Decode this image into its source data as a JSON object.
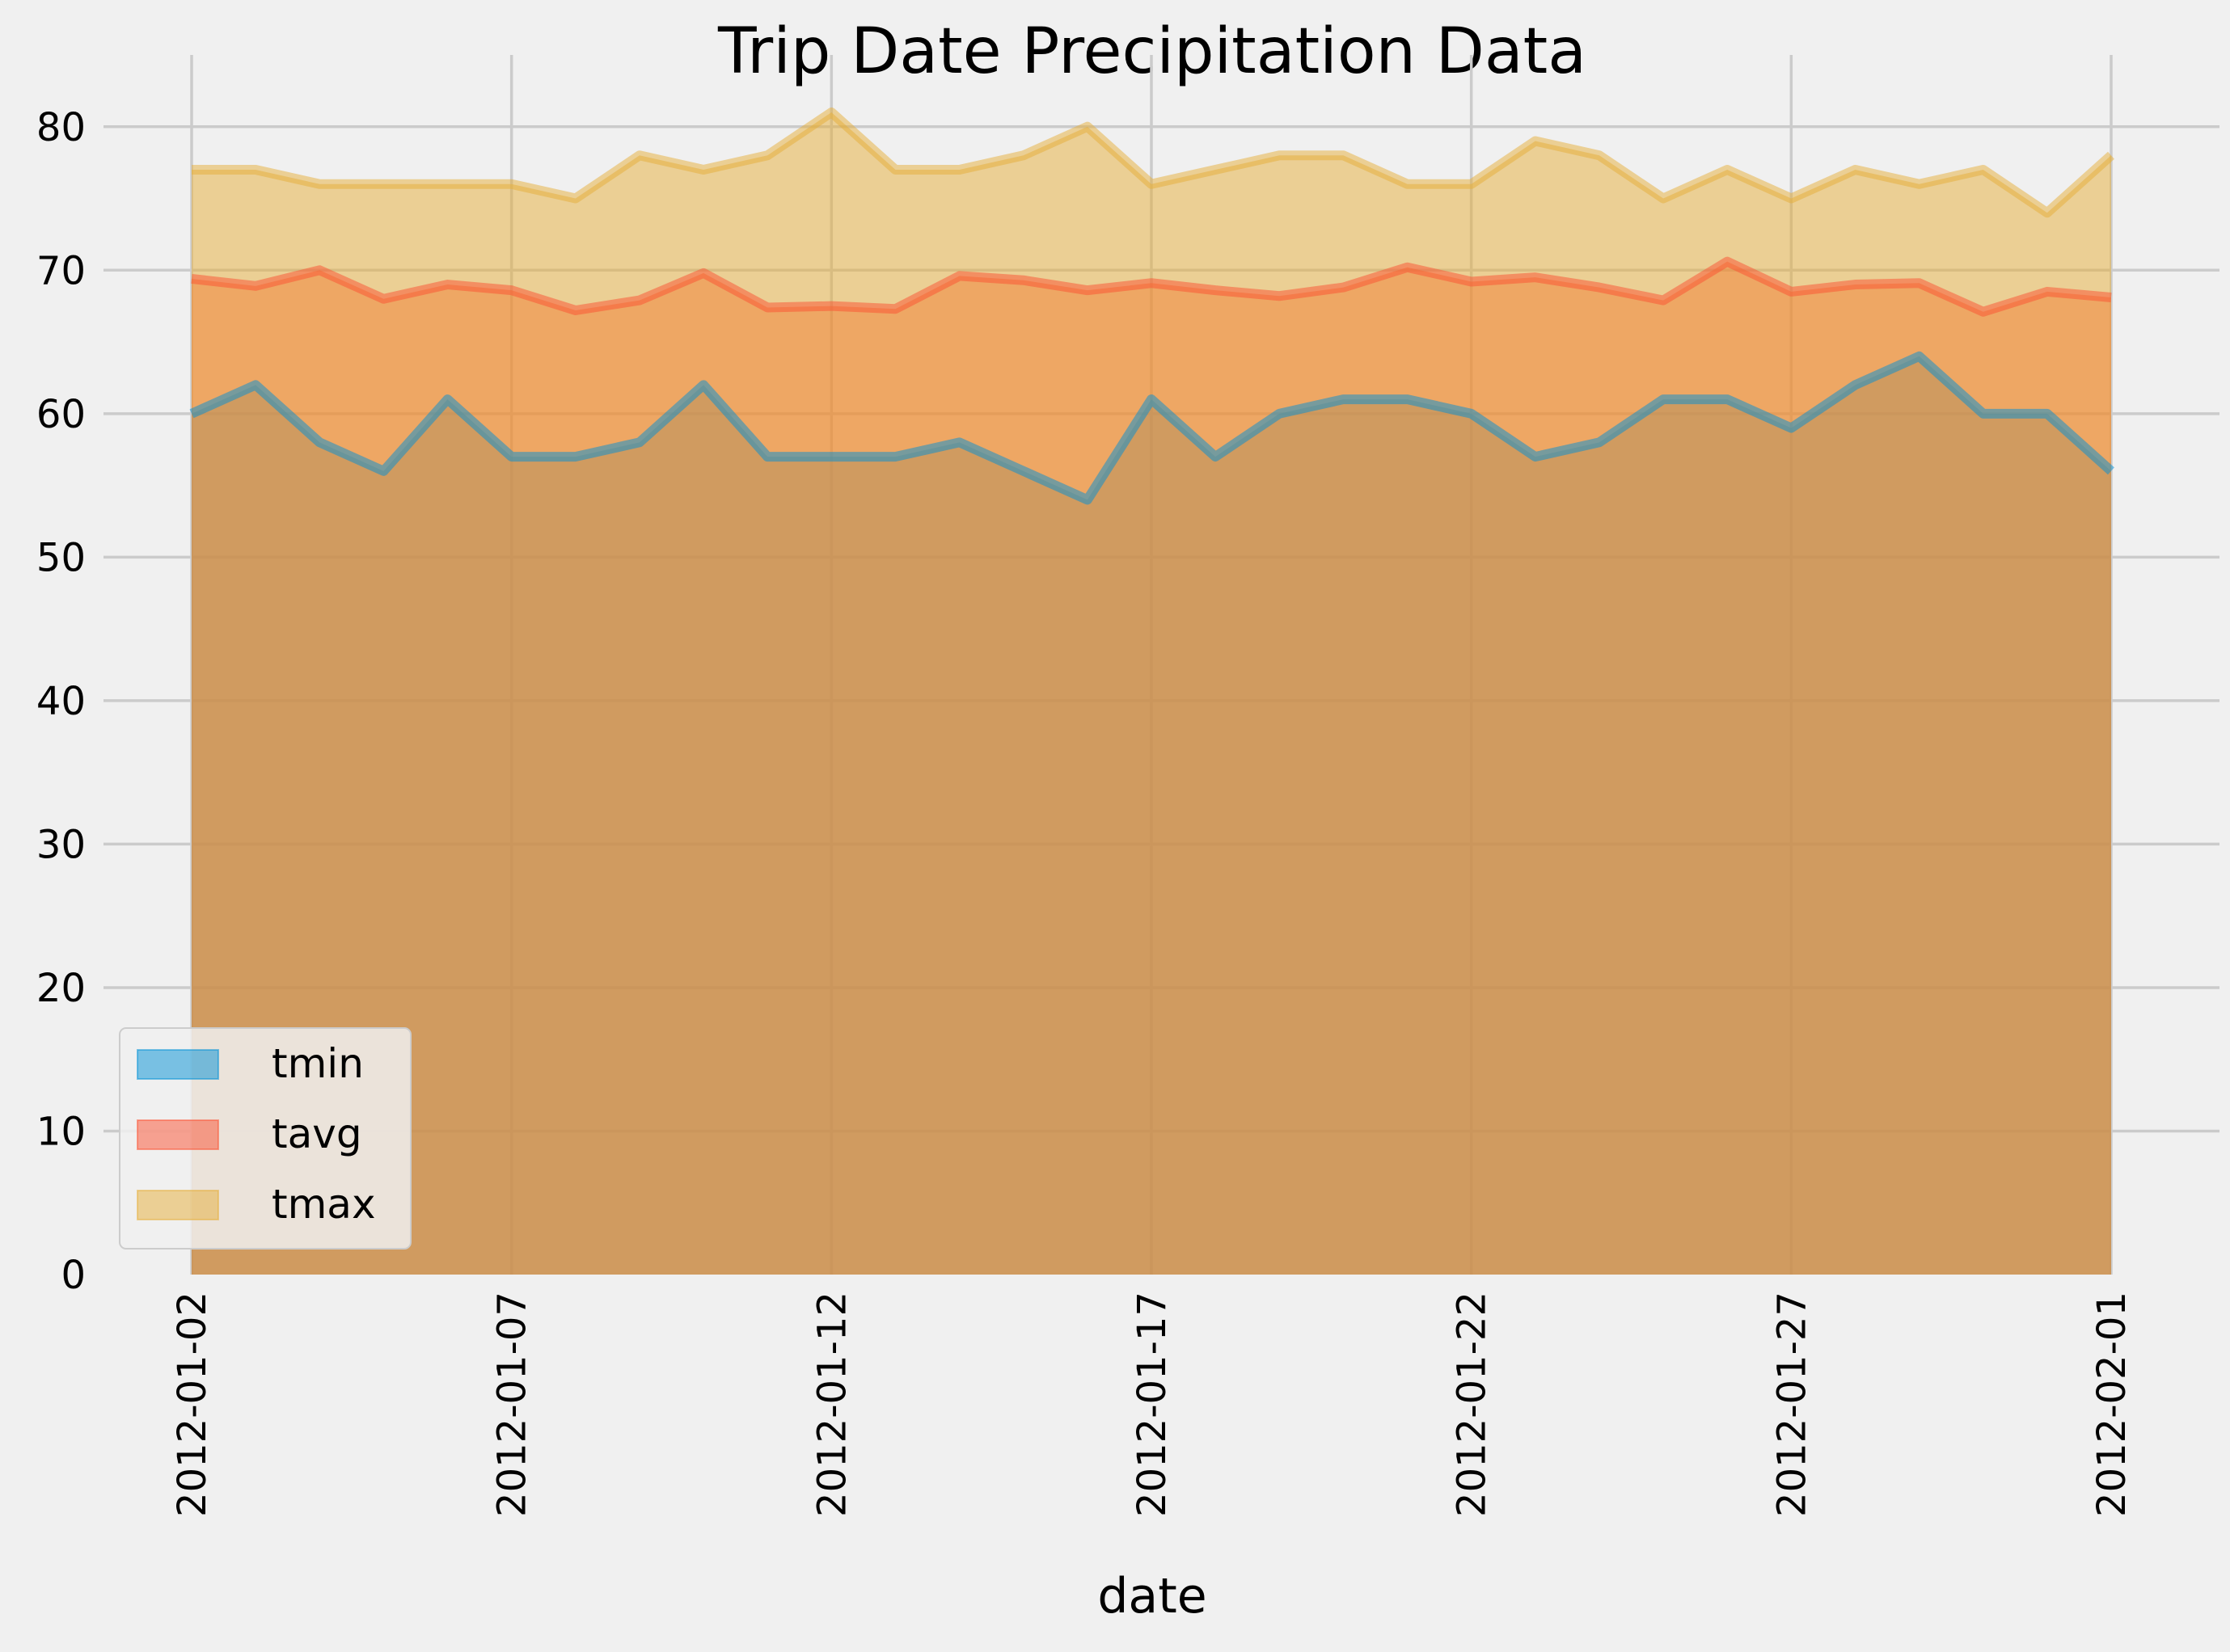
{
  "colors": {
    "tmin": "#008fd5",
    "tavg": "#fc4f30",
    "tmax": "#e5ae38",
    "background": "#f0f0f0",
    "grid": "#cbcbcb"
  },
  "chart_data": {
    "type": "area",
    "title": "Trip Date Precipitation Data",
    "xlabel": "date",
    "ylabel": "",
    "x": [
      "2012-01-02",
      "2012-01-03",
      "2012-01-04",
      "2012-01-05",
      "2012-01-06",
      "2012-01-07",
      "2012-01-08",
      "2012-01-09",
      "2012-01-10",
      "2012-01-11",
      "2012-01-12",
      "2012-01-13",
      "2012-01-14",
      "2012-01-15",
      "2012-01-16",
      "2012-01-17",
      "2012-01-18",
      "2012-01-19",
      "2012-01-20",
      "2012-01-21",
      "2012-01-22",
      "2012-01-23",
      "2012-01-24",
      "2012-01-25",
      "2012-01-26",
      "2012-01-27",
      "2012-01-28",
      "2012-01-29",
      "2012-01-30",
      "2012-01-31",
      "2012-02-01"
    ],
    "x_ticks": [
      "2012-01-02",
      "2012-01-07",
      "2012-01-12",
      "2012-01-17",
      "2012-01-22",
      "2012-01-27",
      "2012-02-01"
    ],
    "y_ticks": [
      0,
      10,
      20,
      30,
      40,
      50,
      60,
      70,
      80
    ],
    "ylim": [
      0,
      85
    ],
    "stacked": false,
    "grid": true,
    "legend_position": "lower-left",
    "series": [
      {
        "name": "tmin",
        "values": [
          60,
          62,
          58,
          56,
          61,
          57,
          57,
          58,
          62,
          57,
          57,
          57,
          58,
          56,
          54,
          61,
          57,
          60,
          61,
          61,
          60,
          57,
          58,
          61,
          61,
          59,
          62,
          64,
          60,
          60,
          56
        ]
      },
      {
        "name": "tavg",
        "values": [
          69.4,
          68.9,
          70.0,
          68.0,
          69.0,
          68.6,
          67.2,
          67.9,
          69.8,
          67.4,
          67.5,
          67.3,
          69.6,
          69.3,
          68.6,
          69.1,
          68.6,
          68.2,
          68.8,
          70.2,
          69.2,
          69.5,
          68.8,
          67.9,
          70.6,
          68.5,
          69.0,
          69.1,
          67.1,
          68.5,
          68.1
        ]
      },
      {
        "name": "tmax",
        "values": [
          77,
          77,
          76,
          76,
          76,
          76,
          75,
          78,
          77,
          78,
          81,
          77,
          77,
          78,
          80,
          76,
          77,
          78,
          78,
          76,
          76,
          79,
          78,
          75,
          77,
          75,
          77,
          76,
          77,
          74,
          78
        ]
      }
    ]
  }
}
